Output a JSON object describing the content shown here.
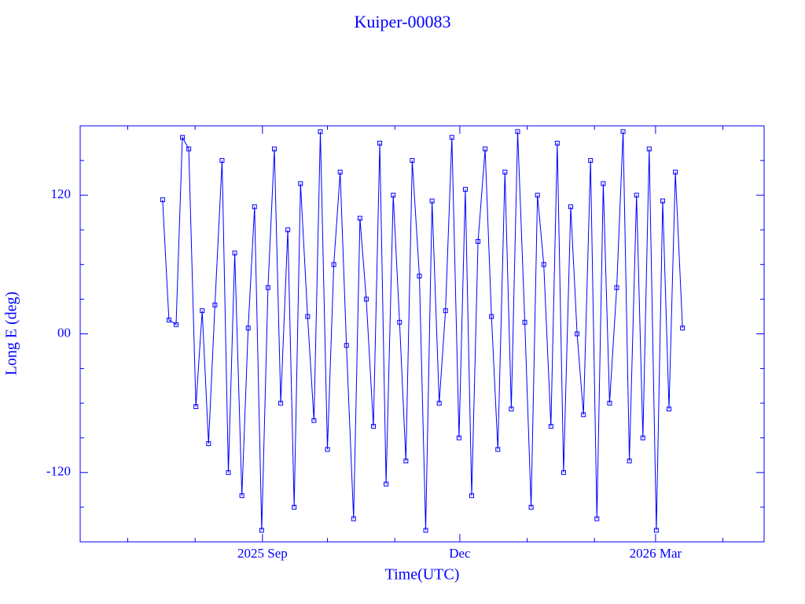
{
  "chart_data": {
    "type": "line",
    "title": "Kuiper-00083",
    "x_label": "Time(UTC)",
    "y_label": "Long E (deg)",
    "color": "#0000ff",
    "markers": true,
    "xlim": [
      2025.436,
      2026.299
    ],
    "xticks": [
      {
        "value": 2025.666,
        "label": "2025 Sep"
      },
      {
        "value": 2025.915,
        "label": "Dec"
      },
      {
        "value": 2026.162,
        "label": "2026 Mar"
      }
    ],
    "xticks_minor": [
      2025.496,
      2025.581,
      2025.748,
      2025.833,
      2026.0,
      2026.085,
      2026.247
    ],
    "ylim": [
      -180,
      180
    ],
    "yticks": [
      -120,
      {
        "value": 0,
        "label": "00"
      },
      120
    ],
    "yticks_minor": [
      -150,
      -90,
      -60,
      -30,
      30,
      60,
      90,
      150
    ],
    "x": [
      2025.54,
      2025.548,
      2025.557,
      2025.565,
      2025.573,
      2025.582,
      2025.59,
      2025.598,
      2025.606,
      2025.615,
      2025.623,
      2025.631,
      2025.64,
      2025.648,
      2025.656,
      2025.665,
      2025.673,
      2025.681,
      2025.689,
      2025.698,
      2025.706,
      2025.714,
      2025.723,
      2025.731,
      2025.739,
      2025.748,
      2025.756,
      2025.764,
      2025.772,
      2025.781,
      2025.789,
      2025.797,
      2025.806,
      2025.814,
      2025.822,
      2025.831,
      2025.839,
      2025.847,
      2025.855,
      2025.864,
      2025.872,
      2025.88,
      2025.889,
      2025.897,
      2025.905,
      2025.914,
      2025.922,
      2025.93,
      2025.938,
      2025.947,
      2025.955,
      2025.963,
      2025.972,
      2025.98,
      2025.988,
      2025.997,
      2026.005,
      2026.013,
      2026.021,
      2026.03,
      2026.038,
      2026.046,
      2026.055,
      2026.063,
      2026.071,
      2026.08,
      2026.088,
      2026.096,
      2026.104,
      2026.113,
      2026.121,
      2026.129,
      2026.138,
      2026.146,
      2026.154,
      2026.163,
      2026.171,
      2026.179,
      2026.187,
      2026.196
    ],
    "values": [
      116,
      12,
      8,
      170,
      160,
      -63,
      20,
      -95,
      25,
      150,
      -120,
      70,
      -140,
      5,
      110,
      -170,
      40,
      160,
      -60,
      90,
      -150,
      130,
      15,
      -75,
      175,
      -100,
      60,
      140,
      -10,
      -160,
      100,
      30,
      -80,
      165,
      -130,
      120,
      10,
      -110,
      150,
      50,
      -170,
      115,
      -60,
      20,
      170,
      -90,
      125,
      -140,
      80,
      160,
      15,
      -100,
      140,
      -65,
      175,
      10,
      -150,
      120,
      60,
      -80,
      165,
      -120,
      110,
      0,
      -70,
      150,
      -160,
      130,
      -60,
      40,
      175,
      -110,
      120,
      -90,
      160,
      -170,
      115,
      -65,
      140,
      5
    ]
  }
}
